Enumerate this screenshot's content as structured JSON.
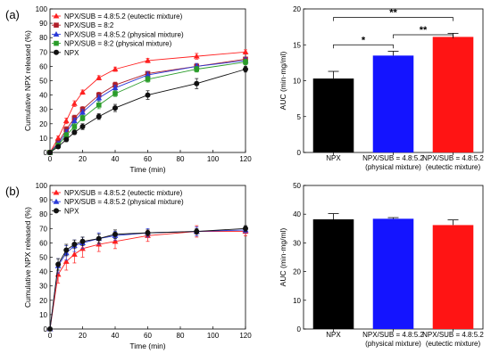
{
  "figure": {
    "panels": [
      {
        "label": "(a)",
        "charts": [
          {
            "type": "line",
            "xlabel": "Time (min)",
            "ylabel": "Cumulative NPX released (%)",
            "xlim": [
              0,
              120
            ],
            "ylim": [
              0,
              100
            ],
            "x_ticks": [
              "0",
              "20",
              "40",
              "60",
              "80",
              "100",
              "120"
            ],
            "y_ticks": [
              "0",
              "10",
              "20",
              "30",
              "40",
              "50",
              "60",
              "70",
              "80",
              "90",
              "100"
            ],
            "legend_position": "top-left",
            "series": [
              {
                "name": "NPX/SUB = 4.8:5.2 (eutectic mixture)",
                "color": "#ff2020",
                "marker": "triangle",
                "x": [
                  0,
                  5,
                  10,
                  15,
                  20,
                  30,
                  40,
                  60,
                  90,
                  120
                ],
                "y": [
                  0,
                  10,
                  22,
                  34,
                  42,
                  52,
                  58,
                  64,
                  67,
                  70
                ],
                "err": [
                  0,
                  1.5,
                  2,
                  2,
                  1.5,
                  1.5,
                  1.5,
                  1.5,
                  2,
                  1.5
                ]
              },
              {
                "name": "NPX/SUB = 8:2",
                "color": "#b0202a",
                "marker": "square",
                "x": [
                  0,
                  5,
                  10,
                  15,
                  20,
                  30,
                  40,
                  60,
                  90,
                  120
                ],
                "y": [
                  0,
                  7,
                  16,
                  24,
                  30,
                  40,
                  47,
                  55,
                  60,
                  65
                ],
                "err": [
                  0,
                  1.5,
                  2,
                  2,
                  2,
                  2,
                  2,
                  1.5,
                  2,
                  1.5
                ]
              },
              {
                "name": "NPX/SUB = 4.8:5.2 (physical mixture)",
                "color": "#2a3ad8",
                "marker": "triangle",
                "x": [
                  0,
                  5,
                  10,
                  15,
                  20,
                  30,
                  40,
                  60,
                  90,
                  120
                ],
                "y": [
                  0,
                  6,
                  14,
                  22,
                  28,
                  38,
                  45,
                  54,
                  60,
                  64
                ],
                "err": [
                  0,
                  1.5,
                  2,
                  2,
                  2,
                  2,
                  2,
                  2,
                  2,
                  2
                ]
              },
              {
                "name": "NPX/SUB = 8:2 (physical mixture)",
                "color": "#2a9c2a",
                "marker": "square",
                "x": [
                  0,
                  5,
                  10,
                  15,
                  20,
                  30,
                  40,
                  60,
                  90,
                  120
                ],
                "y": [
                  0,
                  5,
                  12,
                  18,
                  24,
                  33,
                  41,
                  51,
                  58,
                  63
                ],
                "err": [
                  0,
                  1.5,
                  2,
                  2,
                  2,
                  2.5,
                  2,
                  2,
                  2,
                  2
                ]
              },
              {
                "name": "NPX",
                "color": "#111111",
                "marker": "circle",
                "x": [
                  0,
                  5,
                  10,
                  15,
                  20,
                  30,
                  40,
                  60,
                  90,
                  120
                ],
                "y": [
                  0,
                  4,
                  9,
                  14,
                  18,
                  25,
                  31,
                  40,
                  48,
                  58
                ],
                "err": [
                  0,
                  1,
                  1.5,
                  1.5,
                  2,
                  2,
                  2.5,
                  3,
                  3.5,
                  2
                ]
              }
            ]
          },
          {
            "type": "bar",
            "ylabel": "AUC (min·mg/ml)",
            "ylim": [
              0,
              20
            ],
            "y_ticks": [
              "0",
              "5",
              "10",
              "15",
              "20"
            ],
            "categories": [
              [
                "NPX"
              ],
              [
                "NPX/SUB = 4.8:5.2",
                "(physical mixture)"
              ],
              [
                "NPX/SUB = 4.8:5.2",
                "(eutectic mixture)"
              ]
            ],
            "values": [
              10.3,
              13.5,
              16.1
            ],
            "errors": [
              1.0,
              0.6,
              0.5
            ],
            "colors": [
              "#000000",
              "#1414ff",
              "#ff1414"
            ],
            "significance": [
              {
                "from": 0,
                "to": 1,
                "label": "*"
              },
              {
                "from": 1,
                "to": 2,
                "label": "**"
              },
              {
                "from": 0,
                "to": 2,
                "label": "**"
              }
            ]
          }
        ]
      },
      {
        "label": "(b)",
        "charts": [
          {
            "type": "line",
            "xlabel": "Time (min)",
            "ylabel": "Cumulative NPX released (%)",
            "xlim": [
              0,
              120
            ],
            "ylim": [
              0,
              100
            ],
            "x_ticks": [
              "0",
              "20",
              "40",
              "60",
              "80",
              "100",
              "120"
            ],
            "y_ticks": [
              "0",
              "10",
              "20",
              "30",
              "40",
              "50",
              "60",
              "70",
              "80",
              "90",
              "100"
            ],
            "legend_position": "top-left",
            "series": [
              {
                "name": "NPX/SUB = 4.8:5.2 (eutectic mixture)",
                "color": "#ff2020",
                "marker": "triangle",
                "x": [
                  0,
                  5,
                  10,
                  15,
                  20,
                  30,
                  40,
                  60,
                  90,
                  120
                ],
                "y": [
                  0,
                  38,
                  47,
                  52,
                  56,
                  59,
                  61,
                  65,
                  68,
                  68
                ],
                "err": [
                  0,
                  6,
                  6,
                  6,
                  6,
                  5,
                  5,
                  4,
                  4,
                  3
                ]
              },
              {
                "name": "NPX/SUB = 4.8:5.2 (physical mixture)",
                "color": "#2a3ad8",
                "marker": "triangle",
                "x": [
                  0,
                  5,
                  10,
                  15,
                  20,
                  30,
                  40,
                  60,
                  90,
                  120
                ],
                "y": [
                  0,
                  44,
                  53,
                  58,
                  60,
                  63,
                  65,
                  67,
                  68,
                  69
                ],
                "err": [
                  0,
                  5,
                  5,
                  4,
                  4,
                  4,
                  3,
                  3,
                  3,
                  2
                ]
              },
              {
                "name": "NPX",
                "color": "#111111",
                "marker": "circle",
                "x": [
                  0,
                  5,
                  10,
                  15,
                  20,
                  30,
                  40,
                  60,
                  90,
                  120
                ],
                "y": [
                  0,
                  45,
                  55,
                  59,
                  61,
                  63,
                  66,
                  67,
                  68,
                  70
                ],
                "err": [
                  0,
                  4,
                  4,
                  3,
                  3,
                  3,
                  3,
                  2,
                  2,
                  2
                ]
              }
            ]
          },
          {
            "type": "bar",
            "ylabel": "AUC (min·mg/ml)",
            "ylim": [
              0,
              50
            ],
            "y_ticks": [
              "0",
              "10",
              "20",
              "30",
              "40",
              "50"
            ],
            "categories": [
              [
                "NPX"
              ],
              [
                "NPX/SUB = 4.8:5.2",
                "(physical mixture)"
              ],
              [
                "NPX/SUB = 4.8:5.2",
                "(eutectic mixture)"
              ]
            ],
            "values": [
              38.2,
              38.4,
              36.2
            ],
            "errors": [
              2.0,
              0.4,
              1.8
            ],
            "colors": [
              "#000000",
              "#1414ff",
              "#ff1414"
            ],
            "significance": []
          }
        ]
      }
    ]
  }
}
